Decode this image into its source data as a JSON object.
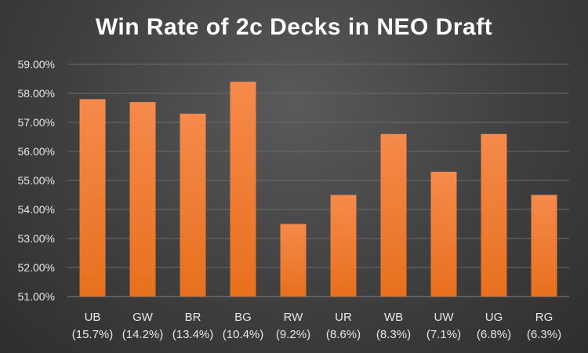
{
  "chart_data": {
    "type": "bar",
    "title": "Win Rate of 2c Decks in NEO Draft",
    "xlabel": "",
    "ylabel": "",
    "categories": [
      "UB",
      "GW",
      "BR",
      "BG",
      "RW",
      "UR",
      "WB",
      "UW",
      "UG",
      "RG"
    ],
    "category_sublabels": [
      "(15.7%)",
      "(14.2%)",
      "(13.4%)",
      "(10.4%)",
      "(9.2%)",
      "(8.6%)",
      "(8.3%)",
      "(7.1%)",
      "(6.8%)",
      "(6.3%)"
    ],
    "values": [
      57.8,
      57.7,
      57.3,
      58.4,
      53.5,
      54.5,
      56.6,
      55.3,
      56.6,
      54.5
    ],
    "ylim": [
      51,
      59
    ],
    "yticks": [
      51,
      52,
      53,
      54,
      55,
      56,
      57,
      58,
      59
    ],
    "ytick_labels": [
      "51.00%",
      "52.00%",
      "53.00%",
      "54.00%",
      "55.00%",
      "56.00%",
      "57.00%",
      "58.00%",
      "59.00%"
    ],
    "grid": true,
    "legend": "none",
    "colors": {
      "bar_top": "#f58a4b",
      "bar_bottom": "#e8701e",
      "grid": "#6a6a6a",
      "text": "#e6e6e6"
    }
  }
}
